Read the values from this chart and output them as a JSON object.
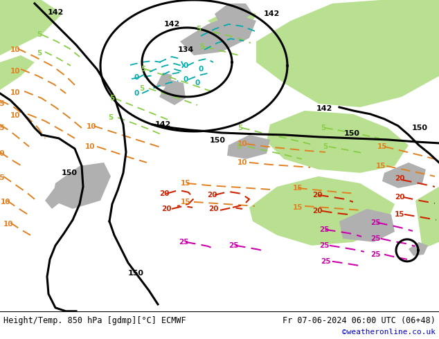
{
  "title_left": "Height/Temp. 850 hPa [gdmp][°C] ECMWF",
  "title_right": "Fr 07-06-2024 06:00 UTC (06+48)",
  "watermark": "©weatheronline.co.uk",
  "bg_color": "#c8c8c8",
  "land_green_color": "#b8e090",
  "land_gray_color": "#b0b0b0",
  "footer_bg": "#ffffff",
  "black_color": "#000000",
  "orange_color": "#e08020",
  "lime_color": "#88cc44",
  "cyan_color": "#00aaaa",
  "red_color": "#cc2200",
  "magenta_color": "#cc00aa",
  "font_size_footer": 9,
  "font_size_label": 7.5
}
